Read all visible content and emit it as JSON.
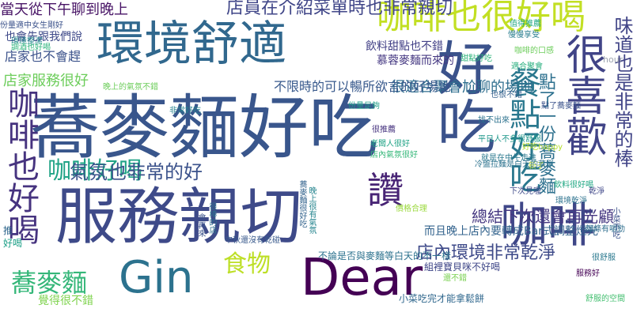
{
  "cloud": {
    "words": [
      {
        "text": "蕎麥麵好吃",
        "color": "#39568c"
      },
      {
        "text": "服務親切",
        "color": "#3e4a89"
      },
      {
        "text": "環境舒適",
        "color": "#31688e"
      },
      {
        "text": "好吃",
        "color": "#3b528b"
      },
      {
        "text": "很喜歡",
        "color": "#414487"
      },
      {
        "text": "咖啡也很好喝",
        "color": "#c2df23"
      },
      {
        "text": "Dear",
        "color": "#440154"
      },
      {
        "text": "咖啡",
        "color": "#3f4788"
      },
      {
        "text": "Gin",
        "color": "#2c728e"
      },
      {
        "text": "咖啡也好喝",
        "color": "#46337f"
      },
      {
        "text": "餐點好吃",
        "color": "#2a788e"
      },
      {
        "text": "讚",
        "color": "#482475"
      },
      {
        "text": "咖啡好喝",
        "color": "#20a386"
      },
      {
        "text": "蕎麥麵",
        "color": "#35b779"
      },
      {
        "text": "味道也是非常的棒",
        "color": "#414487"
      },
      {
        "text": "氣氛也非常的好",
        "color": "#3b528b"
      },
      {
        "text": "點了一份蕎麥麵",
        "color": "#2d708e"
      },
      {
        "text": "食物",
        "color": "#bddf26"
      },
      {
        "text": "店內環境非常乾淨",
        "color": "#3e4a89"
      },
      {
        "text": "總結下次還會再光顧",
        "color": "#453781"
      },
      {
        "text": "店員在介紹菜單時也非常親切",
        "color": "#404688"
      },
      {
        "text": "當天從下午聊到晚上",
        "color": "#471365"
      },
      {
        "text": "很適合聚會尬聊的場地",
        "color": "#2e6e8e"
      },
      {
        "text": "店家服務很好",
        "color": "#6ccd5a"
      },
      {
        "text": "不限時的可以暢所欲言的好場地",
        "color": "#38598c"
      },
      {
        "text": "而且晚上店內要轉成Bar式調整燈光",
        "color": "#33638d"
      },
      {
        "text": "店家也不會趕",
        "color": "#3b528b"
      },
      {
        "text": "也會先跟我們說",
        "color": "#3e4989"
      },
      {
        "text": "飲料甜點也不錯",
        "color": "#424086"
      },
      {
        "text": "慕蓉麥麵而來的",
        "color": "#453882"
      },
      {
        "text": "覺得很不錯",
        "color": "#7fd34e"
      },
      {
        "text": "組裡寶貝咪不好喝",
        "color": "#3f4788"
      },
      {
        "text": "不論是否與麥麵等白天的不一樣",
        "color": "#2c728e"
      },
      {
        "text": "小菜吃完才能拿鬆餅",
        "color": "#31688e"
      },
      {
        "text": "hour",
        "color": "#9ca3af"
      },
      {
        "text": "小菜不吃",
        "color": "#3b528b"
      },
      {
        "text": "也很不錯",
        "color": "#35608d"
      },
      {
        "text": "找不出來",
        "color": "#2c728e"
      },
      {
        "text": "點了蕎麥麵",
        "color": "#3b528b"
      },
      {
        "text": "新子",
        "color": "#c2df23"
      },
      {
        "text": "咖啡的口感",
        "color": "#6ccd5a"
      },
      {
        "text": "好吃happy",
        "color": "#b5de2b"
      },
      {
        "text": "平日人不多很舒服",
        "color": "#1f988b"
      },
      {
        "text": "就是在中午走進",
        "color": "#2a788e"
      },
      {
        "text": "飲料很好喝",
        "color": "#22a884"
      },
      {
        "text": "環境整潔",
        "color": "#25858e"
      },
      {
        "text": "調酒也好喝",
        "color": "#2fb47c"
      },
      {
        "text": "非常好吃",
        "color": "#26828e"
      },
      {
        "text": "份量適中女生剛好",
        "color": "#3b528b"
      },
      {
        "text": "環境乾淨",
        "color": "#2c728e"
      },
      {
        "text": "適合聚會",
        "color": "#29af7f"
      },
      {
        "text": "下次見喔",
        "color": "#3e4a89"
      },
      {
        "text": "值得推薦",
        "color": "#22a884"
      },
      {
        "text": "慢慢享受",
        "color": "#287d8e"
      },
      {
        "text": "甜點好吃",
        "color": "#2fb47c"
      },
      {
        "text": "晚上的氣氛不錯",
        "color": "#6ccd5a"
      },
      {
        "text": "中秋還沒有乾碰",
        "color": "#38598c"
      },
      {
        "text": "份量足夠",
        "color": "#1f9e89"
      },
      {
        "text": "冷盤拉麵是白天的菜單",
        "color": "#2c728e"
      },
      {
        "text": "很推薦",
        "color": "#46337f"
      },
      {
        "text": "老闆人很好",
        "color": "#20a386"
      },
      {
        "text": "店內氣氛很好",
        "color": "#35b779"
      },
      {
        "text": "很棒的店",
        "color": "#2d708e"
      },
      {
        "text": "會再來",
        "color": "#3b528b"
      },
      {
        "text": "還不錯",
        "color": "#7ad151"
      },
      {
        "text": "推",
        "color": "#31688e"
      },
      {
        "text": "好喝",
        "color": "#1fa088"
      },
      {
        "text": "蕎麥麵很好吃",
        "color": "#33638d"
      },
      {
        "text": "晚上很有氣氛",
        "color": "#25848e"
      },
      {
        "text": "價格合理",
        "color": "#9bd93c"
      },
      {
        "text": "很舒服",
        "color": "#2a788e"
      },
      {
        "text": "麵條有嚼勁",
        "color": "#2e6e8e"
      },
      {
        "text": "服務好",
        "color": "#440154"
      },
      {
        "text": "乾淨",
        "color": "#3f4788"
      },
      {
        "text": "舒服的空間",
        "color": "#44bf70"
      }
    ]
  }
}
